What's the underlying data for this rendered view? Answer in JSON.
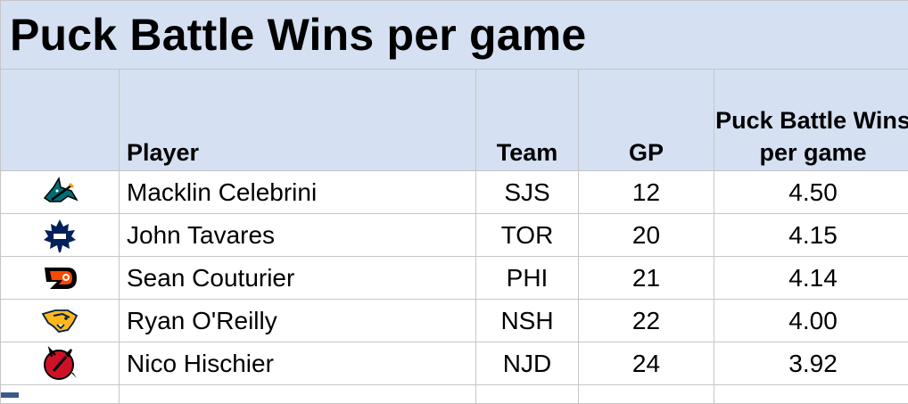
{
  "title": "Puck Battle Wins per game",
  "headers": {
    "player": "Player",
    "team": "Team",
    "gp": "GP",
    "metric": "Puck Battle Wins per game"
  },
  "rows": [
    {
      "logo": "sharks-logo-icon",
      "player": "Macklin Celebrini",
      "team": "SJS",
      "gp": "12",
      "value": "4.50"
    },
    {
      "logo": "maple-leafs-logo-icon",
      "player": "John Tavares",
      "team": "TOR",
      "gp": "20",
      "value": "4.15"
    },
    {
      "logo": "flyers-logo-icon",
      "player": "Sean Couturier",
      "team": "PHI",
      "gp": "21",
      "value": "4.14"
    },
    {
      "logo": "predators-logo-icon",
      "player": "Ryan O'Reilly",
      "team": "NSH",
      "gp": "22",
      "value": "4.00"
    },
    {
      "logo": "devils-logo-icon",
      "player": "Nico Hischier",
      "team": "NJD",
      "gp": "24",
      "value": "3.92"
    }
  ],
  "colors": {
    "header_bg": "#d5e1f2",
    "gridline": "#c6c6c6",
    "sharks": "#006d75",
    "leafs": "#00205b",
    "flyers": "#f74902",
    "predators": "#ffb81c",
    "devils": "#ce1126"
  }
}
